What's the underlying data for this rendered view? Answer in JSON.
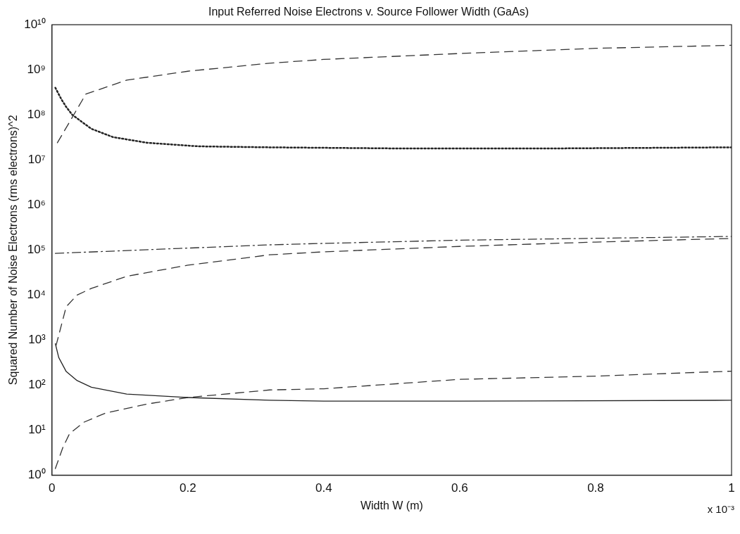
{
  "chart_data": {
    "type": "line",
    "title": "Input Referred Noise Electrons v. Source Follower Width (GaAs)",
    "xlabel": "Width W (m)",
    "ylabel": "Squared Number of Noise Electrons (rms electrons)^2",
    "annotations": [
      "x 10⁻³"
    ],
    "log": "y",
    "grid": false,
    "legend": false,
    "marker": "none",
    "xlim": [
      0,
      1
    ],
    "xticks": [
      0,
      0.2,
      0.4,
      0.6,
      0.8,
      1
    ],
    "ylim": [
      1,
      10000000000
    ],
    "yticks": [
      {
        "value": 1,
        "label": "10⁰"
      },
      {
        "value": 10,
        "label": "10¹"
      },
      {
        "value": 100,
        "label": "10²"
      },
      {
        "value": 1000,
        "label": "10³"
      },
      {
        "value": 10000,
        "label": "10⁴"
      },
      {
        "value": 100000,
        "label": "10⁵"
      },
      {
        "value": 1000000,
        "label": "10⁶"
      },
      {
        "value": 10000000,
        "label": "10⁷"
      },
      {
        "value": 100000000,
        "label": "10⁸"
      },
      {
        "value": 1000000000,
        "label": "10⁹"
      },
      {
        "value": 10000000000,
        "label": "10¹⁰"
      }
    ],
    "series": [
      {
        "color": "#333333",
        "line_style": "dashed",
        "x": [
          0.008,
          0.05,
          0.11,
          0.2,
          0.32,
          0.4,
          0.6,
          0.8,
          1
        ],
        "values": [
          24000000,
          290000000,
          590000000,
          930000000,
          1400000000,
          1700000000,
          2300000000,
          3000000000,
          3500000000
        ]
      },
      {
        "color": "#222222",
        "line_style": "dotted",
        "x": [
          0.005,
          0.014,
          0.021,
          0.03,
          0.058,
          0.09,
          0.14,
          0.215,
          0.32,
          0.5,
          0.75,
          1
        ],
        "values": [
          400000000,
          220000000,
          150000000,
          100000000,
          49000000,
          32000000,
          24000000,
          20000000,
          19000000,
          18000000,
          18000000,
          19000000
        ]
      },
      {
        "color": "#333333",
        "line_style": "dashdot",
        "x": [
          0.005,
          0.32,
          0.4,
          0.6,
          1
        ],
        "values": [
          84000,
          130000,
          140000,
          165000,
          200000
        ]
      },
      {
        "color": "#333333",
        "line_style": "dashed",
        "x": [
          0.006,
          0.021,
          0.037,
          0.058,
          0.11,
          0.2,
          0.32,
          0.4,
          0.6,
          0.8,
          1
        ],
        "values": [
          750,
          5500,
          10000,
          14000,
          26000,
          46000,
          78000,
          91000,
          120000,
          150000,
          180000
        ]
      },
      {
        "color": "#222222",
        "line_style": "solid",
        "x": [
          0.005,
          0.01,
          0.021,
          0.037,
          0.058,
          0.11,
          0.2,
          0.32,
          0.4,
          0.6,
          1
        ],
        "values": [
          830,
          410,
          200,
          126,
          90,
          63,
          53,
          46,
          44,
          44,
          46
        ]
      },
      {
        "color": "#333333",
        "line_style": "dashed",
        "x": [
          0.005,
          0.016,
          0.026,
          0.047,
          0.079,
          0.14,
          0.2,
          0.32,
          0.4,
          0.6,
          0.8,
          1
        ],
        "values": [
          1.4,
          4.1,
          8.4,
          15,
          24,
          38,
          53,
          78,
          83,
          134,
          158,
          204
        ]
      }
    ]
  }
}
